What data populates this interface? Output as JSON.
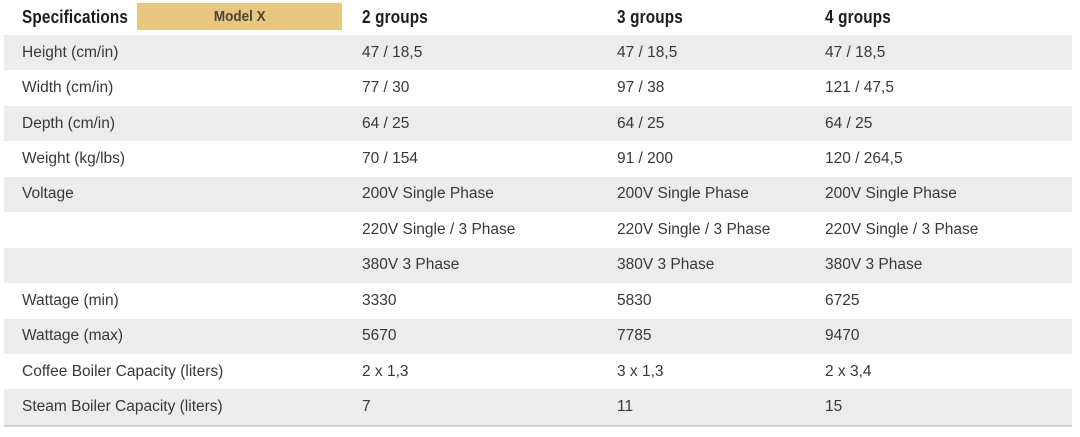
{
  "table_title": "Specifications",
  "header": {
    "col1_label": "Specifications",
    "badge_label": "Model X",
    "group_columns": [
      "2 groups",
      "3 groups",
      "4 groups"
    ]
  },
  "colors": {
    "badge_bg": "#e8c67d",
    "row_alt": "#ececec",
    "text": "#383838",
    "header_text": "#1c1c1b",
    "badge_text": "#4a4439",
    "bottom_border": "#d2d2d2"
  },
  "rows": [
    {
      "label": "Height (cm/in)",
      "values": [
        "47 / 18,5",
        "47 / 18,5",
        "47 / 18,5"
      ],
      "shaded": true
    },
    {
      "label": "Width (cm/in)",
      "values": [
        "77 / 30",
        "97 / 38",
        "121 / 47,5"
      ],
      "shaded": false
    },
    {
      "label": "Depth (cm/in)",
      "values": [
        "64 / 25",
        "64 / 25",
        "64 / 25"
      ],
      "shaded": true
    },
    {
      "label": "Weight (kg/lbs)",
      "values": [
        "70 / 154",
        "91 / 200",
        "120 / 264,5"
      ],
      "shaded": false
    },
    {
      "label": "Voltage",
      "values": [
        "200V Single Phase",
        "200V Single Phase",
        "200V Single Phase"
      ],
      "shaded": true
    },
    {
      "label": "",
      "values": [
        "220V Single / 3 Phase",
        "220V Single / 3 Phase",
        "220V Single / 3 Phase"
      ],
      "shaded": false
    },
    {
      "label": "",
      "values": [
        "380V 3 Phase",
        "380V 3 Phase",
        "380V 3 Phase"
      ],
      "shaded": true
    },
    {
      "label": "Wattage (min)",
      "values": [
        "3330",
        "5830",
        "6725"
      ],
      "shaded": false
    },
    {
      "label": "Wattage (max)",
      "values": [
        "5670",
        "7785",
        "9470"
      ],
      "shaded": true
    },
    {
      "label": "Coffee Boiler Capacity (liters)",
      "values": [
        "2 x 1,3",
        "3 x 1,3",
        "2 x 3,4"
      ],
      "shaded": false
    },
    {
      "label": "Steam Boiler Capacity (liters)",
      "values": [
        "7",
        "11",
        "15"
      ],
      "shaded": true
    }
  ]
}
